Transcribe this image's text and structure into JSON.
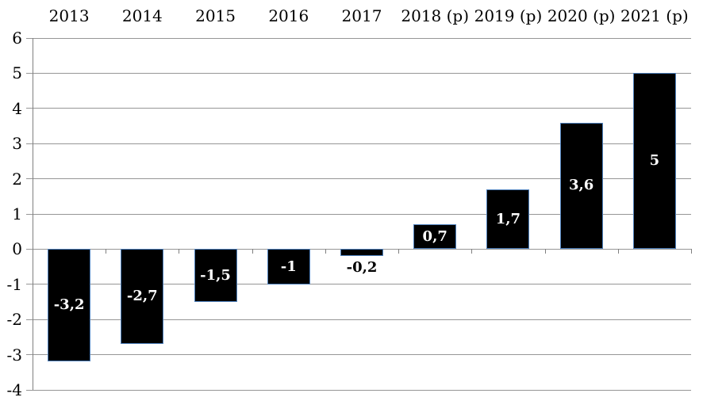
{
  "chart_data": {
    "type": "bar",
    "title": "",
    "categories": [
      "2013",
      "2014",
      "2015",
      "2016",
      "2017",
      "2018 (p)",
      "2019 (p)",
      "2020 (p)",
      "2021 (p)"
    ],
    "values": [
      -3.2,
      -2.7,
      -1.5,
      -1,
      -0.2,
      0.7,
      1.7,
      3.6,
      5
    ],
    "value_labels": [
      "-3,2",
      "-2,7",
      "-1,5",
      "-1",
      "-0,2",
      "0,7",
      "1,7",
      "3,6",
      "5"
    ],
    "y_tick_labels": [
      "6",
      "5",
      "4",
      "3",
      "2",
      "1",
      "0",
      "-1",
      "-2",
      "-3",
      "-4"
    ],
    "y_tick_values": [
      6,
      5,
      4,
      3,
      2,
      1,
      0,
      -1,
      -2,
      -3,
      -4
    ],
    "ylim": [
      -4,
      6
    ],
    "xlabel": "",
    "ylabel": "",
    "grid": true,
    "legend": "none",
    "category_labels_position": "top",
    "outside_label_indices": [
      4
    ],
    "colors": {
      "background": "#ffffff",
      "bar_fill": "#000000",
      "bar_border": "#4f81bd",
      "gridline": "#969696",
      "axis_line": "#808080",
      "tick_label": "#000000",
      "category_label": "#000000",
      "data_label_inside": "#ffffff",
      "data_label_outside": "#000000"
    }
  }
}
